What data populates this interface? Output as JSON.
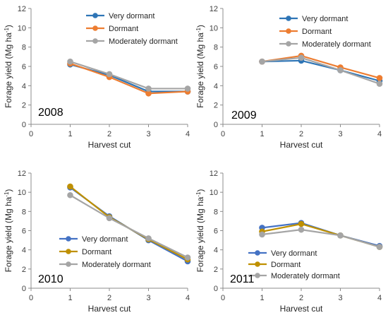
{
  "chart_data": [
    {
      "type": "line",
      "panel_label": "2008",
      "ylabel": "Forage yield (Mg ha-1)",
      "ylabel_main": "Forage yield (Mg ha",
      "ylabel_sup": "-1",
      "ylabel_close": ")",
      "xlabel": "Harvest cut",
      "xlim": [
        0,
        4
      ],
      "ylim": [
        0,
        12
      ],
      "x_ticks": [
        0,
        1,
        2,
        3,
        4
      ],
      "y_ticks": [
        0,
        2,
        4,
        6,
        8,
        10,
        12
      ],
      "legend_position": "top-right",
      "x": [
        1,
        2,
        3,
        4
      ],
      "series": [
        {
          "name": "Very dormant",
          "color": "#2E75B6",
          "values": [
            6.2,
            5.1,
            3.4,
            3.4
          ]
        },
        {
          "name": "Dormant",
          "color": "#ED7D31",
          "values": [
            6.3,
            4.9,
            3.2,
            3.4
          ]
        },
        {
          "name": "Moderately dormant",
          "color": "#A5A5A5",
          "values": [
            6.5,
            5.2,
            3.7,
            3.7
          ]
        }
      ]
    },
    {
      "type": "line",
      "panel_label": "2009",
      "ylabel": "Forage yield (Mg ha-1)",
      "ylabel_main": "Forage yield (Mg ha",
      "ylabel_sup": "-1",
      "ylabel_close": ")",
      "xlabel": "Harvest cut",
      "xlim": [
        0,
        4
      ],
      "ylim": [
        0,
        12
      ],
      "x_ticks": [
        0,
        1,
        2,
        3,
        4
      ],
      "y_ticks": [
        0,
        2,
        4,
        6,
        8,
        10,
        12
      ],
      "legend_position": "top-right",
      "x": [
        1,
        2,
        3,
        4
      ],
      "series": [
        {
          "name": "Very dormant",
          "color": "#2E75B6",
          "values": [
            6.5,
            6.6,
            5.6,
            4.5
          ]
        },
        {
          "name": "Dormant",
          "color": "#ED7D31",
          "values": [
            6.5,
            7.1,
            5.9,
            4.8
          ]
        },
        {
          "name": "Moderately dormant",
          "color": "#A5A5A5",
          "values": [
            6.5,
            6.9,
            5.6,
            4.2
          ]
        }
      ]
    },
    {
      "type": "line",
      "panel_label": "2010",
      "ylabel": "Forage yield (Mg ha-1)",
      "ylabel_main": "Forage yield (Mg ha",
      "ylabel_sup": "-1",
      "ylabel_close": ")",
      "xlabel": "Harvest cut",
      "xlim": [
        0,
        4
      ],
      "ylim": [
        0,
        12
      ],
      "x_ticks": [
        0,
        1,
        2,
        3,
        4
      ],
      "y_ticks": [
        0,
        2,
        4,
        6,
        8,
        10,
        12
      ],
      "legend_position": "bottom-left",
      "x": [
        1,
        2,
        3,
        4
      ],
      "series": [
        {
          "name": "Very dormant",
          "color": "#4472C4",
          "values": [
            10.5,
            7.5,
            5.0,
            2.8
          ]
        },
        {
          "name": "Dormant",
          "color": "#BF9000",
          "values": [
            10.6,
            7.4,
            5.1,
            3.0
          ]
        },
        {
          "name": "Moderately dormant",
          "color": "#A5A5A5",
          "values": [
            9.7,
            7.3,
            5.2,
            3.2
          ]
        }
      ]
    },
    {
      "type": "line",
      "panel_label": "2011",
      "ylabel": "Forage yield (Mg ha-1)",
      "ylabel_main": "Forage yield (Mg ha",
      "ylabel_sup": "-1",
      "ylabel_close": ")",
      "xlabel": "Harvest cut",
      "xlim": [
        0,
        4
      ],
      "ylim": [
        0,
        12
      ],
      "x_ticks": [
        0,
        1,
        2,
        3,
        4
      ],
      "y_ticks": [
        0,
        2,
        4,
        6,
        8,
        10,
        12
      ],
      "legend_position": "bottom-center",
      "x": [
        1,
        2,
        3,
        4
      ],
      "series": [
        {
          "name": "Very dormant",
          "color": "#4472C4",
          "values": [
            6.3,
            6.8,
            5.5,
            4.4
          ]
        },
        {
          "name": "Dormant",
          "color": "#BF9000",
          "values": [
            5.9,
            6.7,
            5.5,
            4.3
          ]
        },
        {
          "name": "Moderately dormant",
          "color": "#A5A5A5",
          "values": [
            5.6,
            6.1,
            5.5,
            4.3
          ]
        }
      ]
    }
  ]
}
